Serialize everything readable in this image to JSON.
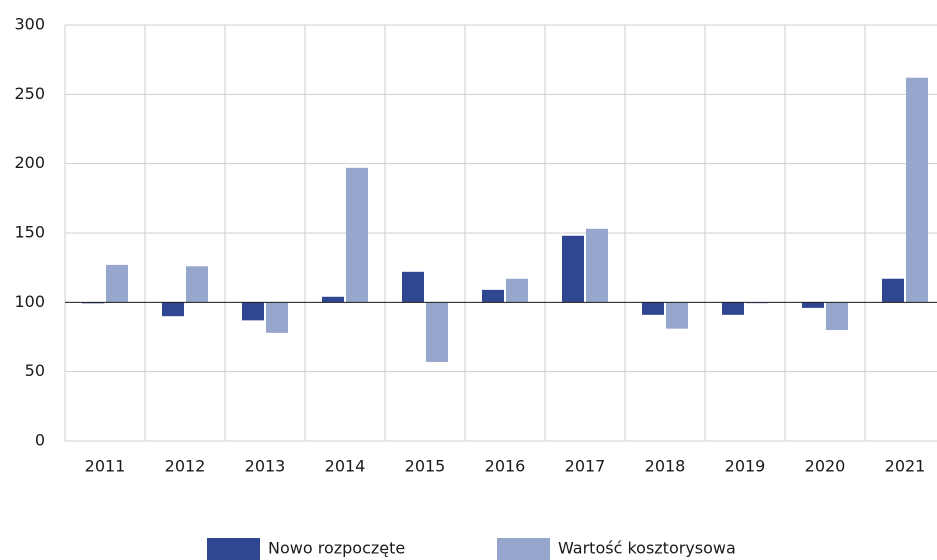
{
  "chart_data": {
    "type": "bar",
    "categories": [
      "2011",
      "2012",
      "2013",
      "2014",
      "2015",
      "2016",
      "2017",
      "2018",
      "2019",
      "2020",
      "2021"
    ],
    "series": [
      {
        "name": "Nowo rozpoczęte",
        "color": "#2f4690",
        "values": [
          100,
          90,
          87,
          104,
          122,
          109,
          148,
          91,
          91,
          96,
          117
        ]
      },
      {
        "name": "Wartość kosztorysowa",
        "color": "#97a6cc",
        "values": [
          127,
          126,
          78,
          197,
          57,
          117,
          153,
          81,
          100,
          80,
          262
        ]
      }
    ],
    "baseline": 100,
    "ylim": [
      0,
      300
    ],
    "yticks": [
      0,
      50,
      100,
      150,
      200,
      250,
      300
    ],
    "grid": true,
    "legend": "bottom"
  }
}
